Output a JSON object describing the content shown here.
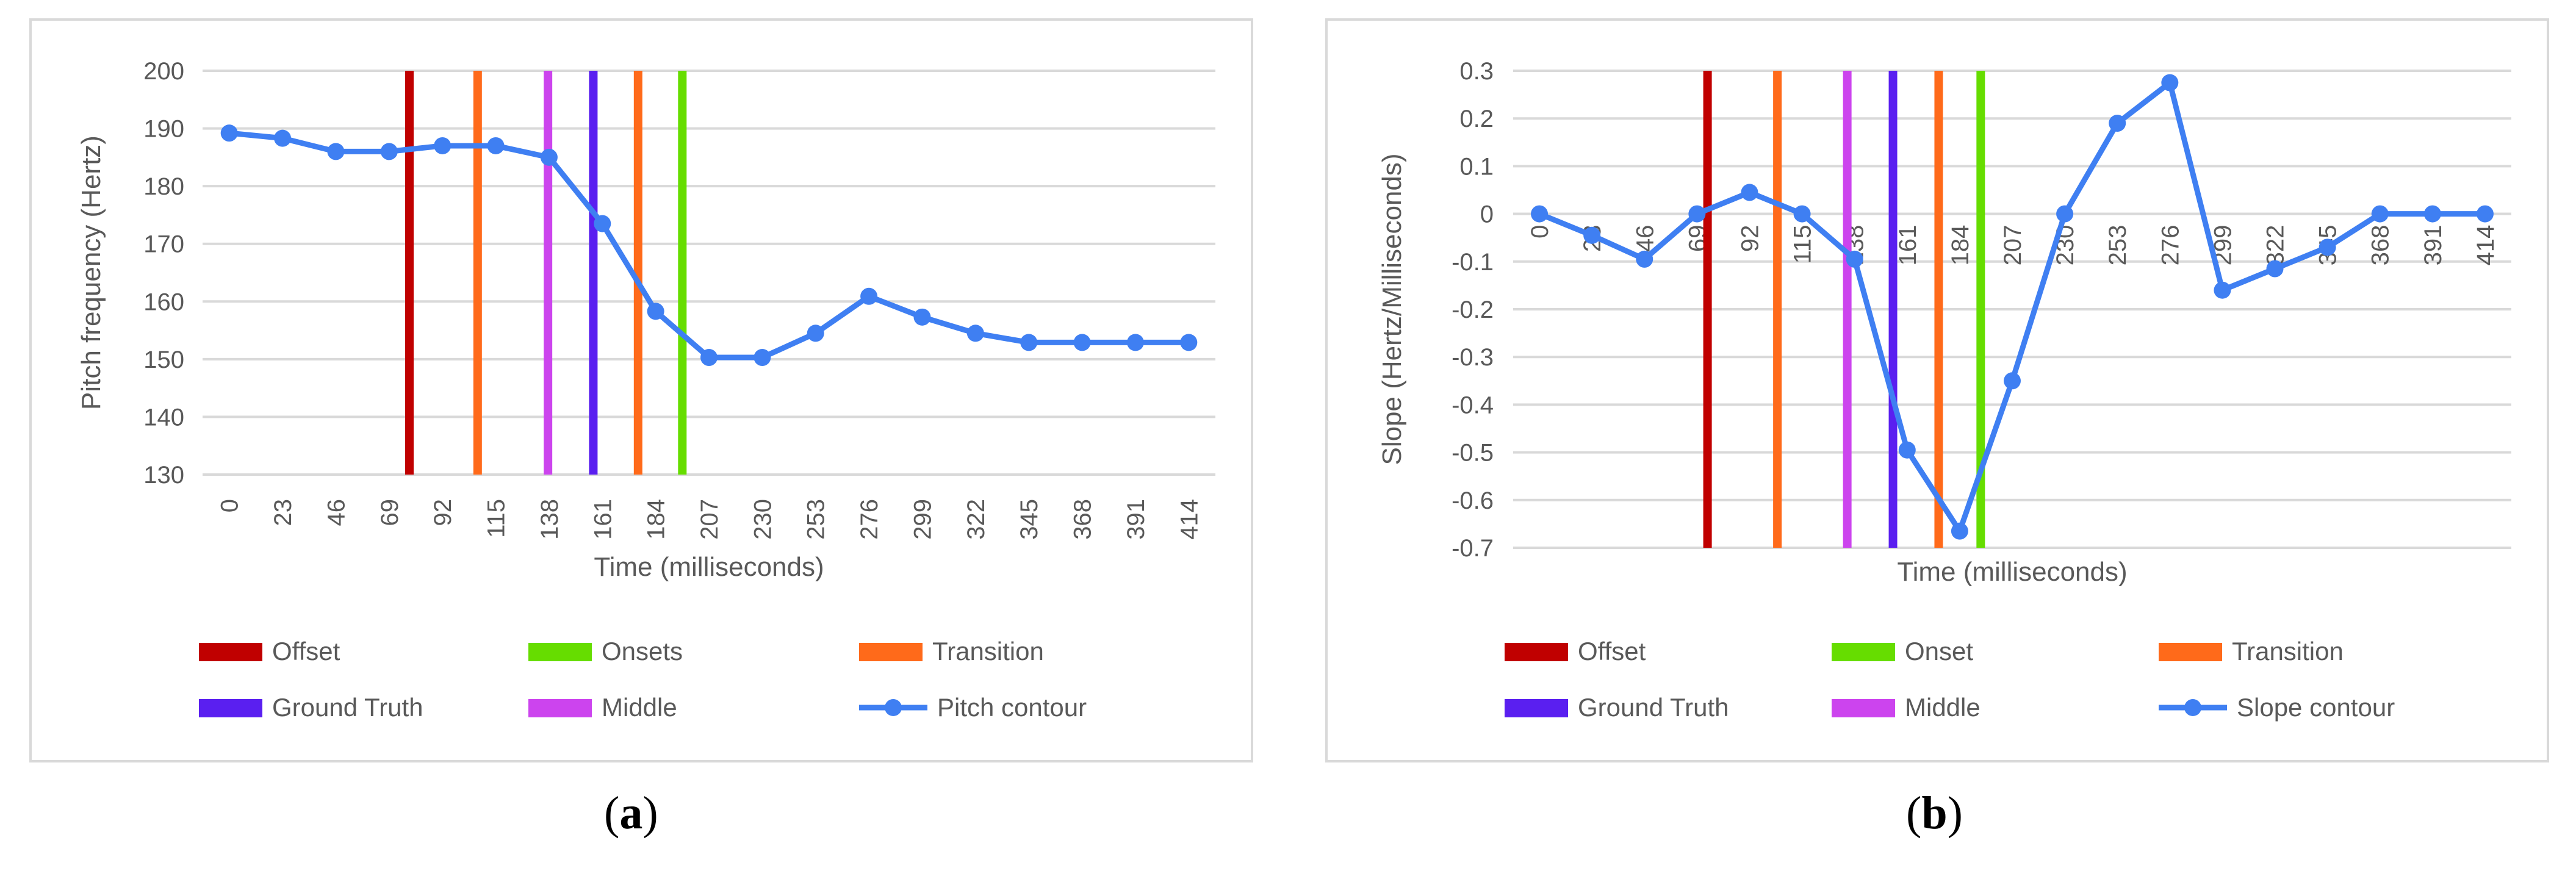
{
  "colors": {
    "offset": "#c00000",
    "onset": "#66dd00",
    "transition": "#ff6a1a",
    "ground_truth": "#5a1ff0",
    "middle": "#cc44ee",
    "contour": "#3f7ff2",
    "grid": "#d9d9d9",
    "text": "#595959"
  },
  "captions": {
    "a": {
      "open": "(",
      "letter": "a",
      "close": ")"
    },
    "b": {
      "open": "(",
      "letter": "b",
      "close": ")"
    }
  },
  "chart_data": [
    {
      "id": "a",
      "type": "line",
      "xlabel": "Time (milliseconds)",
      "ylabel": "Pitch frequency (Hertz)",
      "categories": [
        "0",
        "23",
        "46",
        "69",
        "92",
        "115",
        "138",
        "161",
        "184",
        "207",
        "230",
        "253",
        "276",
        "299",
        "322",
        "345",
        "368",
        "391",
        "414"
      ],
      "ylim": [
        130,
        200
      ],
      "yticks": [
        130,
        140,
        150,
        160,
        170,
        180,
        190,
        200
      ],
      "ytick_labels": [
        "130",
        "140",
        "150",
        "160",
        "170",
        "180",
        "190",
        "200"
      ],
      "x_axis_at": 130,
      "series": [
        {
          "name": "Pitch contour",
          "color_key": "contour",
          "values": [
            189.2,
            188.3,
            186.0,
            186.0,
            187.0,
            187.0,
            185.0,
            173.5,
            158.3,
            150.3,
            150.3,
            154.5,
            160.9,
            157.3,
            154.5,
            152.9,
            152.9,
            152.9,
            152.9
          ]
        }
      ],
      "markers": [
        {
          "name": "Offset",
          "color_key": "offset",
          "x_index": 3.88
        },
        {
          "name": "Transition",
          "color_key": "transition",
          "x_index": 5.16
        },
        {
          "name": "Middle",
          "color_key": "middle",
          "x_index": 6.48
        },
        {
          "name": "Ground Truth",
          "color_key": "ground_truth",
          "x_index": 7.33
        },
        {
          "name": "Transition",
          "color_key": "transition",
          "x_index": 8.17
        },
        {
          "name": "Onsets",
          "color_key": "onset",
          "x_index": 9.0
        }
      ],
      "legend": [
        {
          "label": "Offset",
          "color_key": "offset",
          "kind": "bar"
        },
        {
          "label": "Onsets",
          "color_key": "onset",
          "kind": "bar"
        },
        {
          "label": "Transition",
          "color_key": "transition",
          "kind": "bar"
        },
        {
          "label": "Ground Truth",
          "color_key": "ground_truth",
          "kind": "bar"
        },
        {
          "label": "Middle",
          "color_key": "middle",
          "kind": "bar"
        },
        {
          "label": "Pitch contour",
          "color_key": "contour",
          "kind": "line"
        }
      ]
    },
    {
      "id": "b",
      "type": "line",
      "xlabel": "Time (milliseconds)",
      "ylabel": "Slope (Hertz/Milliseconds)",
      "categories": [
        "0",
        "23",
        "46",
        "69",
        "92",
        "115",
        "138",
        "161",
        "184",
        "207",
        "230",
        "253",
        "276",
        "299",
        "322",
        "345",
        "368",
        "391",
        "414"
      ],
      "ylim": [
        -0.7,
        0.3
      ],
      "yticks": [
        -0.7,
        -0.6,
        -0.5,
        -0.4,
        -0.3,
        -0.2,
        -0.1,
        0,
        0.1,
        0.2,
        0.3
      ],
      "ytick_labels": [
        "-0.7",
        "-0.6",
        "-0.5",
        "-0.4",
        "-0.3",
        "-0.2",
        "-0.1",
        "0",
        "0.1",
        "0.2",
        "0.3"
      ],
      "x_axis_at": 0,
      "series": [
        {
          "name": "Slope contour",
          "color_key": "contour",
          "values": [
            0.0,
            -0.045,
            -0.095,
            0.0,
            0.045,
            0.0,
            -0.095,
            -0.495,
            -0.665,
            -0.35,
            0.0,
            0.19,
            0.275,
            -0.16,
            -0.115,
            -0.07,
            0.0,
            0.0,
            0.0
          ]
        }
      ],
      "markers": [
        {
          "name": "Offset",
          "color_key": "offset",
          "x_index": 3.7
        },
        {
          "name": "Transition",
          "color_key": "transition",
          "x_index": 5.03
        },
        {
          "name": "Middle",
          "color_key": "middle",
          "x_index": 6.36
        },
        {
          "name": "Ground Truth",
          "color_key": "ground_truth",
          "x_index": 7.23
        },
        {
          "name": "Transition",
          "color_key": "transition",
          "x_index": 8.1
        },
        {
          "name": "Onset",
          "color_key": "onset",
          "x_index": 8.9
        }
      ],
      "legend": [
        {
          "label": "Offset",
          "color_key": "offset",
          "kind": "bar"
        },
        {
          "label": "Onset",
          "color_key": "onset",
          "kind": "bar"
        },
        {
          "label": "Transition",
          "color_key": "transition",
          "kind": "bar"
        },
        {
          "label": "Ground Truth",
          "color_key": "ground_truth",
          "kind": "bar"
        },
        {
          "label": "Middle",
          "color_key": "middle",
          "kind": "bar"
        },
        {
          "label": "Slope contour",
          "color_key": "contour",
          "kind": "line"
        }
      ]
    }
  ]
}
